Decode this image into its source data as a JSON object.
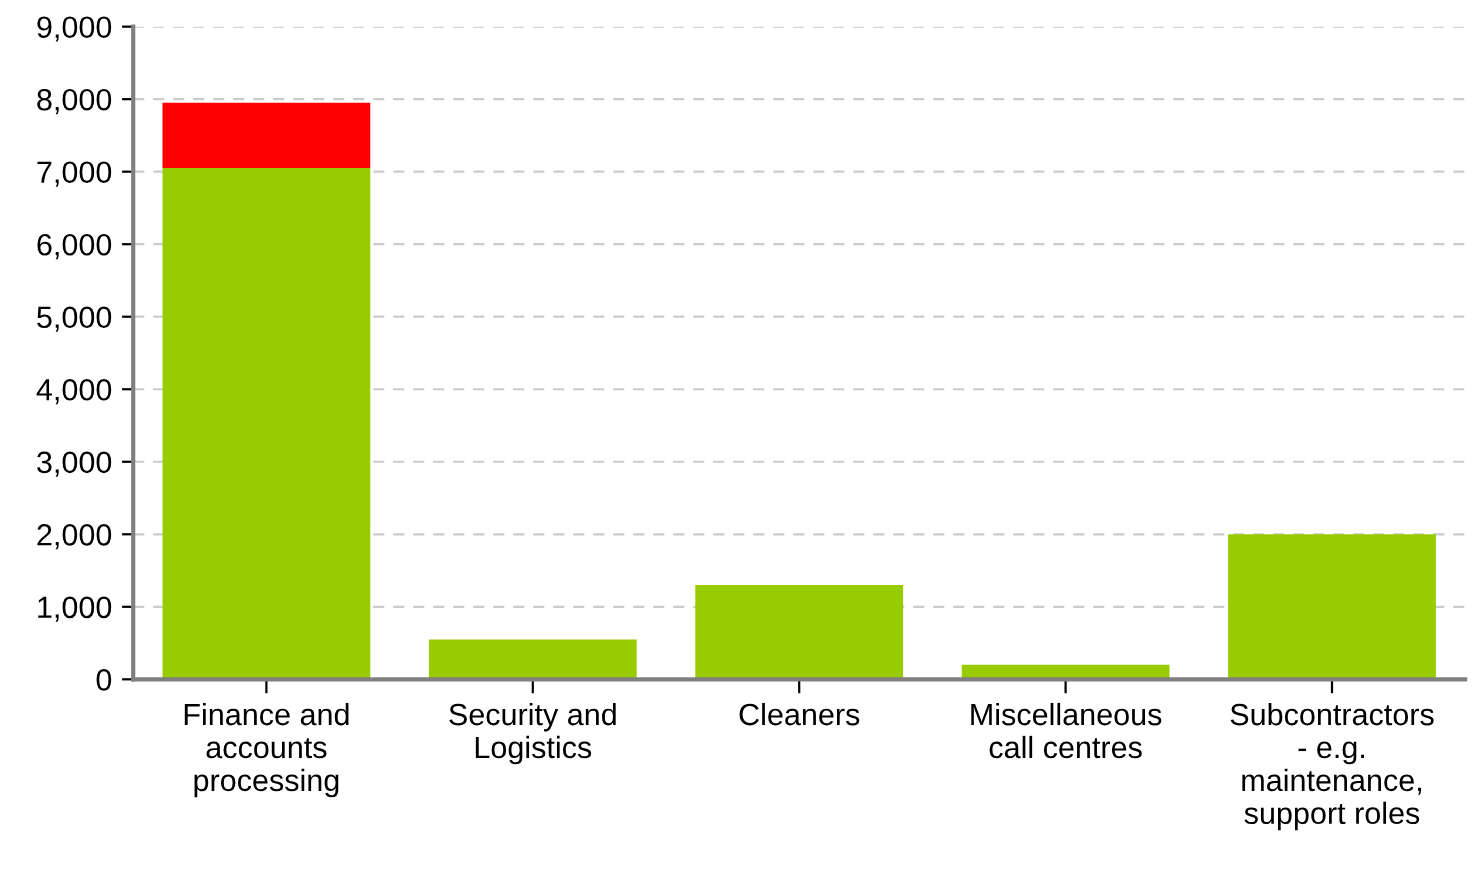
{
  "chart_data": {
    "type": "bar",
    "stacked": true,
    "categories": [
      "Finance and\naccounts\nprocessing",
      "Security and\nLogistics",
      "Cleaners",
      "Miscellaneous\ncall centres",
      "Subcontractors\n- e.g.\nmaintenance,\nsupport roles"
    ],
    "series": [
      {
        "color": "#99cc00",
        "values": [
          7050,
          550,
          1300,
          200,
          2000
        ]
      },
      {
        "color": "#ff0000",
        "values": [
          900,
          null,
          null,
          null,
          null
        ]
      }
    ],
    "ylim": [
      0,
      9000
    ],
    "yticks": [
      {
        "value": 0,
        "label": "0"
      },
      {
        "value": 1000,
        "label": "1,000"
      },
      {
        "value": 2000,
        "label": "2,000"
      },
      {
        "value": 3000,
        "label": "3,000"
      },
      {
        "value": 4000,
        "label": "4,000"
      },
      {
        "value": 5000,
        "label": "5,000"
      },
      {
        "value": 6000,
        "label": "6,000"
      },
      {
        "value": 7000,
        "label": "7,000"
      },
      {
        "value": 8000,
        "label": "8,000"
      },
      {
        "value": 9000,
        "label": "9,000"
      }
    ],
    "grid": "y"
  }
}
